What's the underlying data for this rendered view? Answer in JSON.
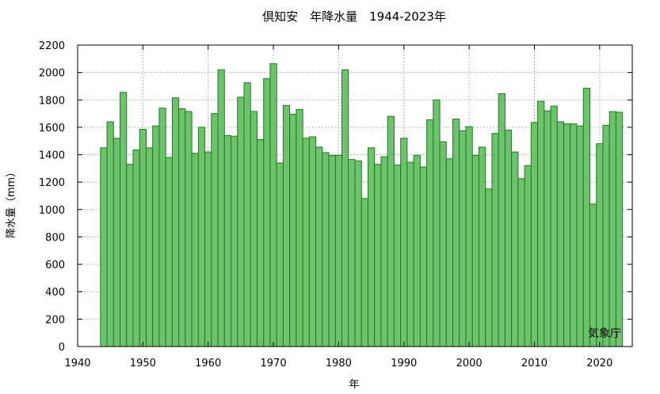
{
  "chart_data": {
    "type": "bar",
    "title": "倶知安　年降水量　1944-2023年",
    "xlabel": "年",
    "ylabel": "降水量（mm）",
    "credit": "気象庁",
    "xlim": [
      1940,
      2025
    ],
    "ylim": [
      0,
      2200
    ],
    "xticks": [
      1940,
      1950,
      1960,
      1970,
      1980,
      1990,
      2000,
      2010,
      2020
    ],
    "yticks": [
      0,
      200,
      400,
      600,
      800,
      1000,
      1200,
      1400,
      1600,
      1800,
      2000,
      2200
    ],
    "grid": true,
    "x": [
      1944,
      1945,
      1946,
      1947,
      1948,
      1949,
      1950,
      1951,
      1952,
      1953,
      1954,
      1955,
      1956,
      1957,
      1958,
      1959,
      1960,
      1961,
      1962,
      1963,
      1964,
      1965,
      1966,
      1967,
      1968,
      1969,
      1970,
      1971,
      1972,
      1973,
      1974,
      1975,
      1976,
      1977,
      1978,
      1979,
      1980,
      1981,
      1982,
      1983,
      1984,
      1985,
      1986,
      1987,
      1988,
      1989,
      1990,
      1991,
      1992,
      1993,
      1994,
      1995,
      1996,
      1997,
      1998,
      1999,
      2000,
      2001,
      2002,
      2003,
      2004,
      2005,
      2006,
      2007,
      2008,
      2009,
      2010,
      2011,
      2012,
      2013,
      2014,
      2015,
      2016,
      2017,
      2018,
      2019,
      2020,
      2021,
      2022,
      2023
    ],
    "values": [
      1450,
      1640,
      1520,
      1855,
      1330,
      1435,
      1585,
      1450,
      1610,
      1740,
      1380,
      1815,
      1735,
      1715,
      1410,
      1600,
      1420,
      1700,
      2020,
      1540,
      1535,
      1820,
      1925,
      1715,
      1510,
      1955,
      2065,
      1340,
      1760,
      1695,
      1730,
      1520,
      1530,
      1455,
      1415,
      1395,
      1395,
      2020,
      1365,
      1355,
      1080,
      1450,
      1330,
      1385,
      1680,
      1325,
      1520,
      1345,
      1395,
      1310,
      1655,
      1800,
      1495,
      1370,
      1660,
      1575,
      1605,
      1395,
      1455,
      1150,
      1555,
      1845,
      1580,
      1420,
      1225,
      1320,
      1635,
      1790,
      1720,
      1755,
      1640,
      1625,
      1625,
      1610,
      1885,
      1040,
      1480,
      1615,
      1715,
      1710
    ]
  }
}
